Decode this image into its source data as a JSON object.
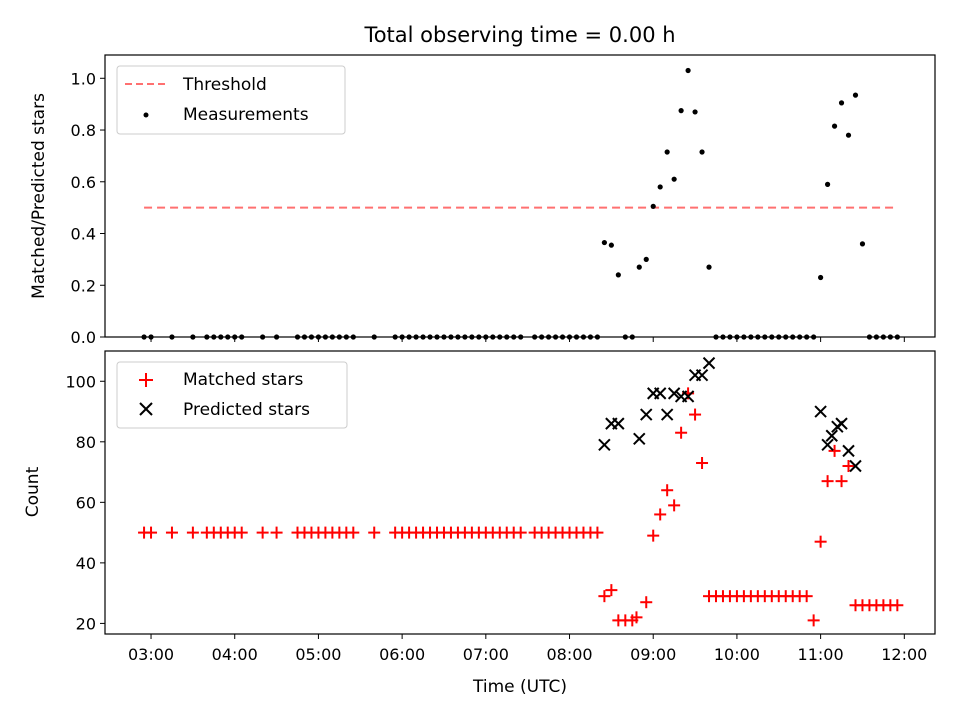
{
  "title": "Total observing time = 0.00 h",
  "xlabel": "Time (UTC)",
  "x_tick_labels": [
    "03:00",
    "04:00",
    "05:00",
    "06:00",
    "07:00",
    "08:00",
    "09:00",
    "10:00",
    "11:00",
    "12:00"
  ],
  "colors": {
    "threshold": "#ff7070",
    "measurements": "#000000",
    "matched": "#ff0000",
    "predicted": "#000000",
    "axes": "#000000"
  },
  "chart_data": [
    {
      "type": "scatter",
      "ylabel": "Matched/Predicted stars",
      "xlim": [
        "02:27",
        "12:22"
      ],
      "ylim": [
        0,
        1.09
      ],
      "y_ticks": [
        "0.0",
        "0.2",
        "0.4",
        "0.6",
        "0.8",
        "1.0"
      ],
      "legend_position": "top-left",
      "threshold": {
        "name": "Threshold",
        "value": 0.5,
        "x_start": "02:55",
        "x_end": "11:55"
      },
      "series": [
        {
          "name": "Measurements",
          "points": [
            [
              "02:55",
              0
            ],
            [
              "03:00",
              0
            ],
            [
              "03:15",
              0
            ],
            [
              "03:30",
              0
            ],
            [
              "03:40",
              0
            ],
            [
              "03:45",
              0
            ],
            [
              "03:50",
              0
            ],
            [
              "03:55",
              0
            ],
            [
              "04:00",
              0
            ],
            [
              "04:05",
              0
            ],
            [
              "04:20",
              0
            ],
            [
              "04:30",
              0
            ],
            [
              "04:45",
              0
            ],
            [
              "04:50",
              0
            ],
            [
              "04:55",
              0
            ],
            [
              "05:00",
              0
            ],
            [
              "05:05",
              0
            ],
            [
              "05:10",
              0
            ],
            [
              "05:15",
              0
            ],
            [
              "05:20",
              0
            ],
            [
              "05:25",
              0
            ],
            [
              "05:40",
              0
            ],
            [
              "05:55",
              0
            ],
            [
              "06:00",
              0
            ],
            [
              "06:05",
              0
            ],
            [
              "06:10",
              0
            ],
            [
              "06:15",
              0
            ],
            [
              "06:20",
              0
            ],
            [
              "06:25",
              0
            ],
            [
              "06:30",
              0
            ],
            [
              "06:35",
              0
            ],
            [
              "06:40",
              0
            ],
            [
              "06:45",
              0
            ],
            [
              "06:50",
              0
            ],
            [
              "06:55",
              0
            ],
            [
              "07:00",
              0
            ],
            [
              "07:05",
              0
            ],
            [
              "07:10",
              0
            ],
            [
              "07:15",
              0
            ],
            [
              "07:20",
              0
            ],
            [
              "07:25",
              0
            ],
            [
              "07:35",
              0
            ],
            [
              "07:40",
              0
            ],
            [
              "07:45",
              0
            ],
            [
              "07:50",
              0
            ],
            [
              "07:55",
              0
            ],
            [
              "08:00",
              0
            ],
            [
              "08:05",
              0
            ],
            [
              "08:10",
              0
            ],
            [
              "08:15",
              0
            ],
            [
              "08:20",
              0
            ],
            [
              "08:25",
              0.365
            ],
            [
              "08:30",
              0.355
            ],
            [
              "08:35",
              0.24
            ],
            [
              "08:40",
              0
            ],
            [
              "08:45",
              0
            ],
            [
              "08:50",
              0.27
            ],
            [
              "08:55",
              0.3
            ],
            [
              "09:00",
              0.505
            ],
            [
              "09:05",
              0.58
            ],
            [
              "09:10",
              0.715
            ],
            [
              "09:15",
              0.61
            ],
            [
              "09:20",
              0.875
            ],
            [
              "09:25",
              1.03
            ],
            [
              "09:30",
              0.87
            ],
            [
              "09:35",
              0.715
            ],
            [
              "09:40",
              0.27
            ],
            [
              "09:45",
              0
            ],
            [
              "09:50",
              0
            ],
            [
              "09:55",
              0
            ],
            [
              "10:00",
              0
            ],
            [
              "10:05",
              0
            ],
            [
              "10:10",
              0
            ],
            [
              "10:15",
              0
            ],
            [
              "10:20",
              0
            ],
            [
              "10:25",
              0
            ],
            [
              "10:30",
              0
            ],
            [
              "10:35",
              0
            ],
            [
              "10:40",
              0
            ],
            [
              "10:45",
              0
            ],
            [
              "10:50",
              0
            ],
            [
              "10:55",
              0
            ],
            [
              "11:00",
              0.23
            ],
            [
              "11:05",
              0.59
            ],
            [
              "11:10",
              0.815
            ],
            [
              "11:15",
              0.905
            ],
            [
              "11:20",
              0.78
            ],
            [
              "11:25",
              0.935
            ],
            [
              "11:30",
              0.36
            ],
            [
              "11:35",
              0
            ],
            [
              "11:40",
              0
            ],
            [
              "11:45",
              0
            ],
            [
              "11:50",
              0
            ],
            [
              "11:55",
              0
            ]
          ]
        }
      ]
    },
    {
      "type": "scatter",
      "ylabel": "Count",
      "xlim": [
        "02:27",
        "12:22"
      ],
      "ylim": [
        16.5,
        110
      ],
      "y_ticks": [
        "20",
        "40",
        "60",
        "80",
        "100"
      ],
      "legend_position": "top-left",
      "series": [
        {
          "name": "Matched stars",
          "points": [
            [
              "02:55",
              50
            ],
            [
              "03:00",
              50
            ],
            [
              "03:15",
              50
            ],
            [
              "03:30",
              50
            ],
            [
              "03:40",
              50
            ],
            [
              "03:45",
              50
            ],
            [
              "03:50",
              50
            ],
            [
              "03:55",
              50
            ],
            [
              "04:00",
              50
            ],
            [
              "04:05",
              50
            ],
            [
              "04:20",
              50
            ],
            [
              "04:30",
              50
            ],
            [
              "04:45",
              50
            ],
            [
              "04:50",
              50
            ],
            [
              "04:55",
              50
            ],
            [
              "05:00",
              50
            ],
            [
              "05:05",
              50
            ],
            [
              "05:10",
              50
            ],
            [
              "05:15",
              50
            ],
            [
              "05:20",
              50
            ],
            [
              "05:25",
              50
            ],
            [
              "05:40",
              50
            ],
            [
              "05:55",
              50
            ],
            [
              "06:00",
              50
            ],
            [
              "06:05",
              50
            ],
            [
              "06:10",
              50
            ],
            [
              "06:15",
              50
            ],
            [
              "06:20",
              50
            ],
            [
              "06:25",
              50
            ],
            [
              "06:30",
              50
            ],
            [
              "06:35",
              50
            ],
            [
              "06:40",
              50
            ],
            [
              "06:45",
              50
            ],
            [
              "06:50",
              50
            ],
            [
              "06:55",
              50
            ],
            [
              "07:00",
              50
            ],
            [
              "07:05",
              50
            ],
            [
              "07:10",
              50
            ],
            [
              "07:15",
              50
            ],
            [
              "07:20",
              50
            ],
            [
              "07:25",
              50
            ],
            [
              "07:35",
              50
            ],
            [
              "07:40",
              50
            ],
            [
              "07:45",
              50
            ],
            [
              "07:50",
              50
            ],
            [
              "07:55",
              50
            ],
            [
              "08:00",
              50
            ],
            [
              "08:05",
              50
            ],
            [
              "08:10",
              50
            ],
            [
              "08:15",
              50
            ],
            [
              "08:20",
              50
            ],
            [
              "08:25",
              29
            ],
            [
              "08:30",
              31
            ],
            [
              "08:35",
              21
            ],
            [
              "08:40",
              21
            ],
            [
              "08:45",
              21
            ],
            [
              "08:48",
              22
            ],
            [
              "08:55",
              27
            ],
            [
              "09:00",
              49
            ],
            [
              "09:05",
              56
            ],
            [
              "09:10",
              64
            ],
            [
              "09:15",
              59
            ],
            [
              "09:20",
              83
            ],
            [
              "09:25",
              96
            ],
            [
              "09:30",
              89
            ],
            [
              "09:35",
              73
            ],
            [
              "09:40",
              29
            ],
            [
              "09:45",
              29
            ],
            [
              "09:50",
              29
            ],
            [
              "09:55",
              29
            ],
            [
              "10:00",
              29
            ],
            [
              "10:05",
              29
            ],
            [
              "10:10",
              29
            ],
            [
              "10:15",
              29
            ],
            [
              "10:20",
              29
            ],
            [
              "10:25",
              29
            ],
            [
              "10:30",
              29
            ],
            [
              "10:35",
              29
            ],
            [
              "10:40",
              29
            ],
            [
              "10:45",
              29
            ],
            [
              "10:50",
              29
            ],
            [
              "10:55",
              21
            ],
            [
              "11:00",
              47
            ],
            [
              "11:05",
              67
            ],
            [
              "11:10",
              77
            ],
            [
              "11:15",
              67
            ],
            [
              "11:20",
              72
            ],
            [
              "11:25",
              26
            ],
            [
              "11:30",
              26
            ],
            [
              "11:35",
              26
            ],
            [
              "11:40",
              26
            ],
            [
              "11:45",
              26
            ],
            [
              "11:50",
              26
            ],
            [
              "11:55",
              26
            ]
          ]
        },
        {
          "name": "Predicted stars",
          "points": [
            [
              "08:25",
              79
            ],
            [
              "08:30",
              86
            ],
            [
              "08:35",
              86
            ],
            [
              "08:50",
              81
            ],
            [
              "08:55",
              89
            ],
            [
              "09:00",
              96
            ],
            [
              "09:05",
              96
            ],
            [
              "09:10",
              89
            ],
            [
              "09:15",
              96
            ],
            [
              "09:20",
              95
            ],
            [
              "09:25",
              95
            ],
            [
              "09:30",
              102
            ],
            [
              "09:35",
              102
            ],
            [
              "09:40",
              106
            ],
            [
              "11:00",
              90
            ],
            [
              "11:05",
              79
            ],
            [
              "11:08",
              82
            ],
            [
              "11:12",
              85
            ],
            [
              "11:15",
              86
            ],
            [
              "11:20",
              77
            ],
            [
              "11:25",
              72
            ]
          ]
        }
      ]
    }
  ]
}
